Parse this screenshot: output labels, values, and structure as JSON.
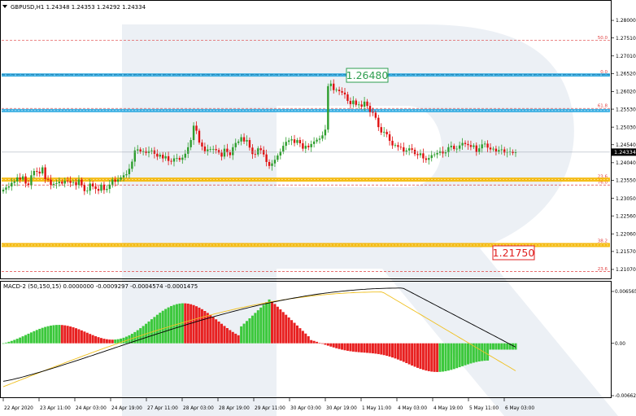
{
  "main_panel": {
    "header": "GBPUSD,H1  1.24348 1.24353 1.24292 1.24334",
    "price_ticks": [
      "1.28000",
      "1.27510",
      "1.27010",
      "1.26520",
      "1.26020",
      "1.25530",
      "1.25030",
      "1.24540",
      "1.24040",
      "1.23550",
      "1.23050",
      "1.22560",
      "1.22060",
      "1.21570",
      "1.21070"
    ],
    "current_price": "1.24334",
    "callouts": [
      {
        "text": "1.26480",
        "color": "#2e9e4f"
      },
      {
        "text": "1.21750",
        "color": "#e02020"
      }
    ],
    "fib_labels": [
      "50.0",
      "0.0",
      "61.8",
      "23.6",
      "76.0",
      "38.2",
      "23.6"
    ]
  },
  "macd_panel": {
    "header": "MACD-2 (50,150,15) 0.0000000 -0.0009297 -0.0004574 -0.0001475",
    "ticks": [
      "0.0065659",
      "0.00",
      "-0.006627"
    ]
  },
  "time_axis": {
    "labels": [
      "22 Apr 2020",
      "23 Apr 11:00",
      "24 Apr 03:00",
      "24 Apr 19:00",
      "27 Apr 11:00",
      "28 Apr 03:00",
      "28 Apr 19:00",
      "29 Apr 11:00",
      "30 Apr 03:00",
      "30 Apr 19:00",
      "1 May 11:00",
      "4 May 03:00",
      "4 May 19:00",
      "5 May 11:00",
      "6 May 03:00"
    ]
  },
  "colors": {
    "bull": "#2e9e2e",
    "bear": "#e01010",
    "macd_bull": "#3cc83c",
    "macd_bear": "#e82020",
    "support_line": "#f5b800",
    "resistance_line": "#2aa8e0",
    "signal_line": "#f0c020",
    "macd_line": "#000000",
    "watermark": "#e6ebf2"
  },
  "chart_data": {
    "type": "candlestick",
    "symbol": "GBPUSD",
    "timeframe": "H1",
    "ylim": [
      1.2082,
      1.2825
    ],
    "candles_close": [
      1.2329,
      1.2335,
      1.2338,
      1.2348,
      1.2352,
      1.2363,
      1.2357,
      1.2366,
      1.2346,
      1.2342,
      1.2369,
      1.2381,
      1.2379,
      1.2374,
      1.2391,
      1.2358,
      1.2357,
      1.2342,
      1.2345,
      1.2347,
      1.2351,
      1.2346,
      1.2354,
      1.2353,
      1.2348,
      1.235,
      1.2342,
      1.2357,
      1.2341,
      1.2325,
      1.2326,
      1.2346,
      1.2338,
      1.2331,
      1.2326,
      1.2343,
      1.2328,
      1.2331,
      1.2343,
      1.2357,
      1.2351,
      1.2357,
      1.2363,
      1.2369,
      1.2372,
      1.2387,
      1.2407,
      1.2438,
      1.2441,
      1.2435,
      1.2436,
      1.2431,
      1.2436,
      1.2438,
      1.2429,
      1.2421,
      1.2426,
      1.2416,
      1.2422,
      1.2409,
      1.2407,
      1.2416,
      1.2417,
      1.2412,
      1.2418,
      1.2429,
      1.2447,
      1.2467,
      1.2507,
      1.2493,
      1.246,
      1.2449,
      1.2436,
      1.2441,
      1.2442,
      1.2442,
      1.2439,
      1.2432,
      1.2421,
      1.2443,
      1.2433,
      1.2425,
      1.2447,
      1.2459,
      1.2463,
      1.2475,
      1.2463,
      1.2467,
      1.2446,
      1.2428,
      1.2427,
      1.2444,
      1.2439,
      1.2427,
      1.2406,
      1.2395,
      1.2402,
      1.2412,
      1.2424,
      1.2435,
      1.2451,
      1.2462,
      1.2466,
      1.2469,
      1.2459,
      1.2467,
      1.2458,
      1.2443,
      1.2451,
      1.2447,
      1.2456,
      1.2463,
      1.2468,
      1.2471,
      1.248,
      1.2496,
      1.2617,
      1.2624,
      1.2606,
      1.2607,
      1.2603,
      1.2599,
      1.2594,
      1.2576,
      1.2567,
      1.2577,
      1.2565,
      1.2566,
      1.256,
      1.2574,
      1.2562,
      1.2545,
      1.2543,
      1.2529,
      1.2503,
      1.2488,
      1.249,
      1.2483,
      1.2465,
      1.2452,
      1.2453,
      1.2448,
      1.2447,
      1.2435,
      1.2438,
      1.2444,
      1.244,
      1.2428,
      1.2425,
      1.243,
      1.2416,
      1.2412,
      1.2417,
      1.2425,
      1.2427,
      1.2431,
      1.2436,
      1.243,
      1.2433,
      1.2447,
      1.2451,
      1.2442,
      1.2443,
      1.2452,
      1.2459,
      1.2456,
      1.2453,
      1.2448,
      1.2452,
      1.2434,
      1.2444,
      1.2455,
      1.2457,
      1.2446,
      1.2441,
      1.2443,
      1.2435,
      1.2439,
      1.2441,
      1.2432,
      1.2434,
      1.2435,
      1.2431,
      1.2433
    ],
    "horizontal_lines": [
      {
        "price": 1.2648,
        "style": "solid",
        "color": "#2aa8e0"
      },
      {
        "price": 1.2549,
        "style": "solid",
        "color": "#2aa8e0"
      },
      {
        "price": 1.2357,
        "style": "solid",
        "color": "#f5b800"
      },
      {
        "price": 1.2175,
        "style": "solid",
        "color": "#f5b800"
      }
    ],
    "fib_levels": [
      {
        "label": "50.0",
        "price": 1.2745
      },
      {
        "label": "0.0",
        "price": 1.2649
      },
      {
        "label": "61.8",
        "price": 1.2555
      },
      {
        "label": "23.6",
        "price": 1.2358
      },
      {
        "label": "76.0",
        "price": 1.2342
      },
      {
        "label": "38.2",
        "price": 1.2179
      },
      {
        "label": "23.6",
        "price": 1.2101
      }
    ],
    "macd_ylim": [
      -0.006627,
      0.0065659
    ]
  }
}
